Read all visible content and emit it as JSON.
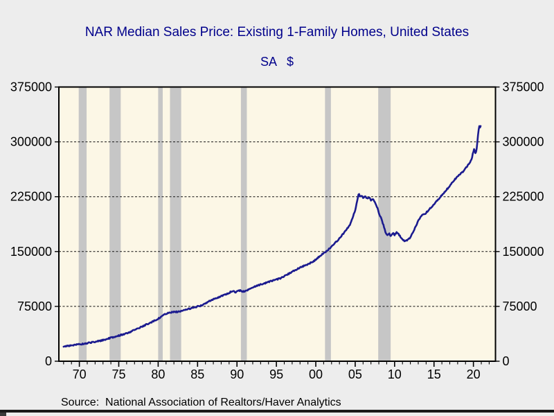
{
  "header": {
    "title": "NAR Median Sales Price: Existing 1-Family Homes, United States",
    "subtitle": "SA   $"
  },
  "footer": {
    "source": "Source:  National Association of Realtors/Haver Analytics"
  },
  "colors": {
    "page_background": "#ededed",
    "plot_background": "#fcf7e6",
    "recession_band": "#c6c6c6",
    "line": "#1b1b8f",
    "title_text": "#00008b",
    "axis_text": "#000000",
    "frame": "#000000",
    "gridline": "#111111"
  },
  "chart_data": {
    "type": "line",
    "title": "NAR Median Sales Price: Existing 1-Family Homes, United States",
    "subtitle": "SA   $",
    "source": "Source:  National Association of Realtors/Haver Analytics",
    "xlabel": "",
    "ylabel": "",
    "grid": "horizontal-dashed",
    "legend": "none",
    "x_axis": {
      "min": 1967.4,
      "max": 2022.8,
      "major_ticks": [
        1970,
        1975,
        1980,
        1985,
        1990,
        1995,
        2000,
        2005,
        2010,
        2015,
        2020
      ],
      "major_tick_labels": [
        "70",
        "75",
        "80",
        "85",
        "90",
        "95",
        "00",
        "05",
        "10",
        "15",
        "20"
      ],
      "minor_tick_start": 1968,
      "minor_tick_end": 2022,
      "minor_tick_interval": 1
    },
    "y_axis": {
      "min": 0,
      "max": 375000,
      "ticks": [
        0,
        75000,
        150000,
        225000,
        300000,
        375000
      ],
      "tick_labels": [
        "0",
        "75000",
        "150000",
        "225000",
        "300000",
        "375000"
      ],
      "gridlines": [
        75000,
        150000,
        225000,
        300000
      ],
      "labels_on_both_sides": true
    },
    "ylim": [
      0,
      375000
    ],
    "recession_bands": [
      [
        1969.92,
        1970.92
      ],
      [
        1973.83,
        1975.25
      ],
      [
        1980.0,
        1980.58
      ],
      [
        1981.5,
        1982.92
      ],
      [
        1990.5,
        1991.25
      ],
      [
        2001.17,
        2001.92
      ],
      [
        2007.92,
        2009.5
      ]
    ],
    "series": [
      {
        "name": "NAR Median Sales Price, Existing 1-Family Homes, SA ($)",
        "color": "#1b1b8f",
        "points": [
          [
            1968.0,
            20300
          ],
          [
            1969.0,
            21800
          ],
          [
            1970.0,
            23100
          ],
          [
            1971.0,
            24700
          ],
          [
            1972.0,
            26600
          ],
          [
            1973.0,
            28900
          ],
          [
            1974.0,
            32000
          ],
          [
            1975.0,
            35000
          ],
          [
            1976.0,
            38100
          ],
          [
            1977.0,
            42500
          ],
          [
            1978.0,
            47800
          ],
          [
            1979.0,
            52500
          ],
          [
            1980.0,
            58000
          ],
          [
            1980.5,
            62000
          ],
          [
            1981.0,
            65000
          ],
          [
            1981.5,
            66600
          ],
          [
            1982.0,
            67200
          ],
          [
            1982.5,
            67600
          ],
          [
            1983.0,
            69200
          ],
          [
            1983.5,
            70500
          ],
          [
            1984.0,
            71900
          ],
          [
            1985.0,
            74800
          ],
          [
            1985.5,
            76300
          ],
          [
            1986.0,
            79000
          ],
          [
            1986.5,
            82200
          ],
          [
            1987.0,
            84800
          ],
          [
            1987.5,
            87000
          ],
          [
            1988.0,
            88800
          ],
          [
            1988.5,
            91000
          ],
          [
            1989.0,
            93600
          ],
          [
            1989.4,
            96000
          ],
          [
            1989.8,
            94500
          ],
          [
            1990.3,
            96800
          ],
          [
            1990.9,
            95200
          ],
          [
            1991.4,
            97500
          ],
          [
            1992.0,
            101200
          ],
          [
            1992.5,
            103000
          ],
          [
            1993.0,
            104900
          ],
          [
            1993.5,
            106400
          ],
          [
            1994.0,
            108300
          ],
          [
            1994.5,
            110000
          ],
          [
            1995.0,
            111800
          ],
          [
            1995.5,
            113400
          ],
          [
            1996.0,
            116200
          ],
          [
            1996.5,
            119300
          ],
          [
            1997.0,
            122200
          ],
          [
            1997.5,
            125200
          ],
          [
            1998.0,
            127800
          ],
          [
            1998.5,
            130300
          ],
          [
            1999.0,
            132600
          ],
          [
            1999.5,
            135400
          ],
          [
            2000.0,
            138800
          ],
          [
            2000.5,
            143600
          ],
          [
            2001.0,
            147600
          ],
          [
            2001.5,
            151800
          ],
          [
            2002.0,
            156500
          ],
          [
            2002.5,
            162300
          ],
          [
            2003.0,
            167800
          ],
          [
            2003.5,
            174500
          ],
          [
            2004.0,
            181800
          ],
          [
            2004.4,
            188000
          ],
          [
            2004.7,
            196500
          ],
          [
            2005.0,
            207000
          ],
          [
            2005.3,
            222000
          ],
          [
            2005.45,
            230000
          ],
          [
            2005.6,
            224500
          ],
          [
            2005.8,
            227000
          ],
          [
            2006.0,
            223500
          ],
          [
            2006.3,
            226000
          ],
          [
            2006.5,
            222500
          ],
          [
            2006.8,
            224000
          ],
          [
            2007.0,
            220500
          ],
          [
            2007.3,
            221500
          ],
          [
            2007.5,
            217000
          ],
          [
            2007.8,
            210000
          ],
          [
            2008.0,
            203000
          ],
          [
            2008.3,
            195000
          ],
          [
            2008.6,
            185500
          ],
          [
            2008.9,
            175000
          ],
          [
            2009.1,
            172000
          ],
          [
            2009.3,
            174500
          ],
          [
            2009.5,
            171800
          ],
          [
            2009.8,
            174800
          ],
          [
            2010.0,
            172800
          ],
          [
            2010.3,
            176500
          ],
          [
            2010.5,
            174000
          ],
          [
            2010.8,
            169500
          ],
          [
            2011.0,
            167000
          ],
          [
            2011.3,
            163500
          ],
          [
            2011.6,
            165800
          ],
          [
            2012.0,
            169000
          ],
          [
            2012.3,
            175500
          ],
          [
            2012.6,
            182500
          ],
          [
            2013.0,
            192000
          ],
          [
            2013.3,
            197000
          ],
          [
            2013.6,
            200800
          ],
          [
            2013.9,
            202000
          ],
          [
            2014.2,
            205500
          ],
          [
            2014.5,
            209000
          ],
          [
            2014.8,
            212000
          ],
          [
            2015.0,
            214500
          ],
          [
            2015.3,
            218500
          ],
          [
            2015.6,
            222000
          ],
          [
            2016.0,
            227000
          ],
          [
            2016.3,
            231000
          ],
          [
            2016.6,
            234500
          ],
          [
            2017.0,
            240000
          ],
          [
            2017.3,
            244000
          ],
          [
            2017.6,
            248000
          ],
          [
            2018.0,
            252500
          ],
          [
            2018.3,
            255500
          ],
          [
            2018.6,
            258500
          ],
          [
            2019.0,
            263500
          ],
          [
            2019.3,
            268000
          ],
          [
            2019.6,
            272500
          ],
          [
            2019.8,
            277500
          ],
          [
            2019.95,
            285500
          ],
          [
            2020.1,
            290000
          ],
          [
            2020.2,
            286500
          ],
          [
            2020.3,
            283000
          ],
          [
            2020.45,
            294000
          ],
          [
            2020.55,
            305000
          ],
          [
            2020.65,
            315500
          ],
          [
            2020.75,
            321500
          ],
          [
            2020.85,
            320000
          ],
          [
            2020.92,
            322500
          ]
        ]
      }
    ],
    "noise": {
      "amplitude": 850,
      "samples_per_year": 12
    }
  }
}
